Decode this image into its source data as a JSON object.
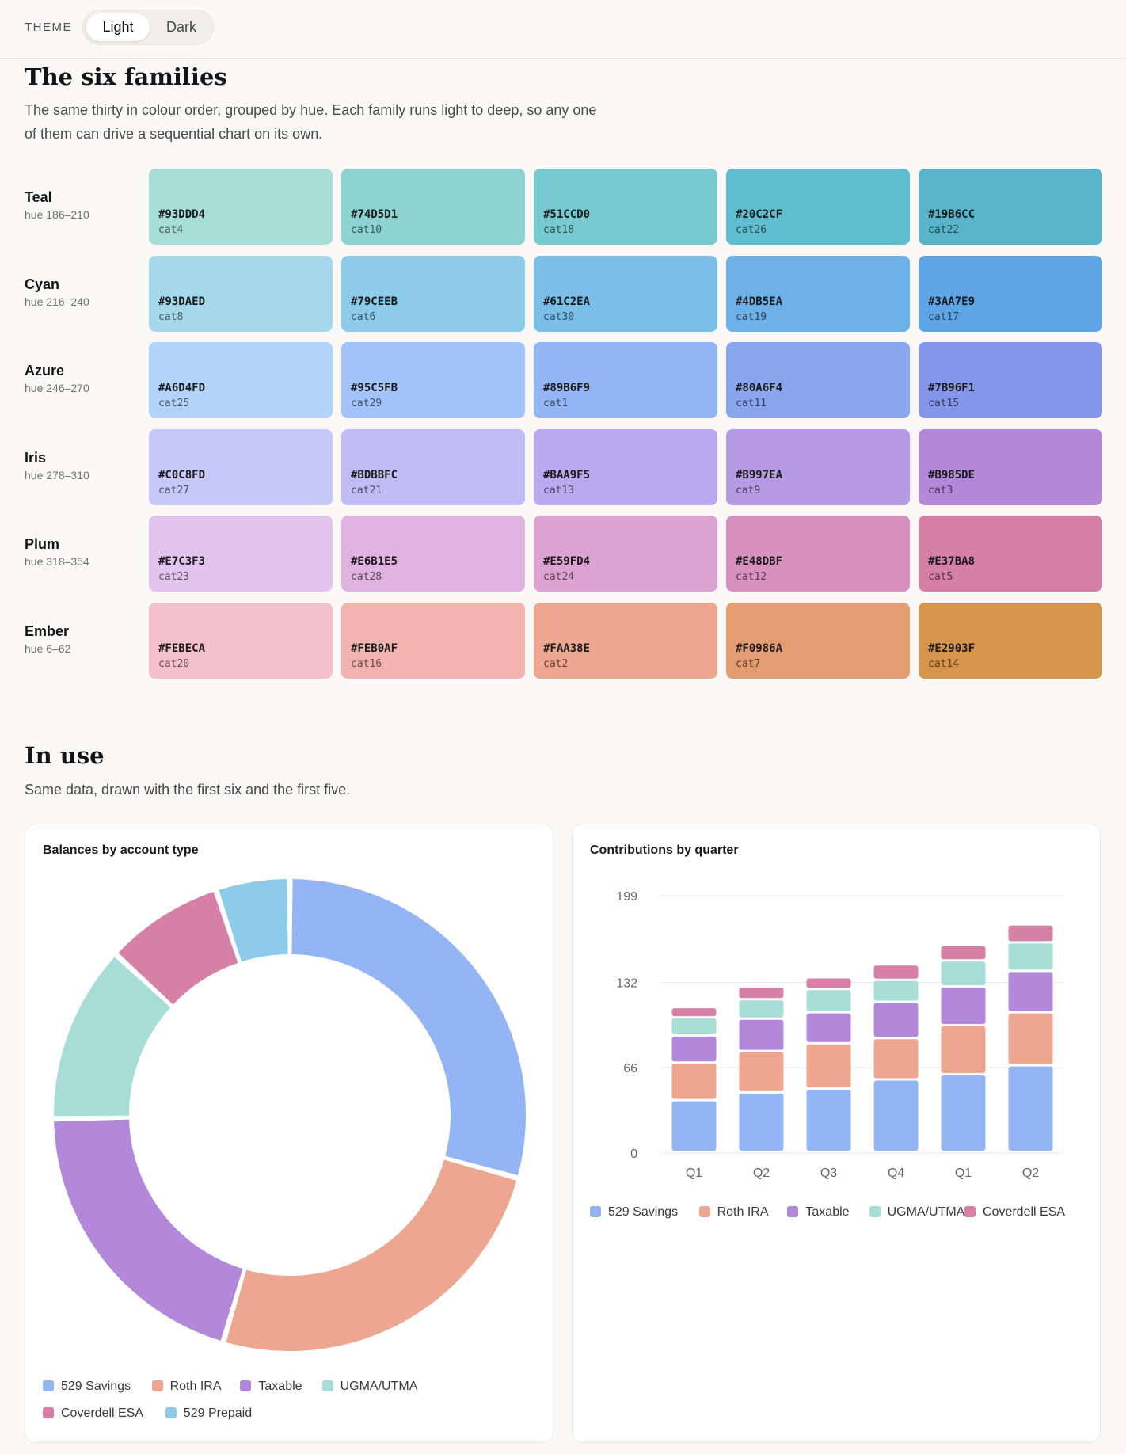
{
  "header": {
    "theme_label": "THEME",
    "theme_options": [
      "Light",
      "Dark"
    ],
    "theme_selected": "Light"
  },
  "families_section": {
    "title": "The six families",
    "description": "The same thirty in colour order, grouped by hue. Each family runs light to deep, so any one of them can drive a sequential chart on its own."
  },
  "families": [
    {
      "name": "Teal",
      "hue": "hue 186–210",
      "swatches": [
        {
          "hex": "#93DDD4",
          "cat": "cat4",
          "color": "#a6ddd6"
        },
        {
          "hex": "#74D5D1",
          "cat": "cat10",
          "color": "#8dd3d1"
        },
        {
          "hex": "#51CCD0",
          "cat": "cat18",
          "color": "#77cacf"
        },
        {
          "hex": "#20C2CF",
          "cat": "cat26",
          "color": "#5ebecf"
        },
        {
          "hex": "#19B6CC",
          "cat": "cat22",
          "color": "#57b4cb"
        }
      ]
    },
    {
      "name": "Cyan",
      "hue": "hue 216–240",
      "swatches": [
        {
          "hex": "#93DAED",
          "cat": "cat8",
          "color": "#a6d8ec"
        },
        {
          "hex": "#79CEEB",
          "cat": "cat6",
          "color": "#8ccbea"
        },
        {
          "hex": "#61C2EA",
          "cat": "cat30",
          "color": "#7bbfe9"
        },
        {
          "hex": "#4DB5EA",
          "cat": "cat19",
          "color": "#6cb1e8"
        },
        {
          "hex": "#3AA7E9",
          "cat": "cat17",
          "color": "#5ea5e6"
        }
      ]
    },
    {
      "name": "Azure",
      "hue": "hue 246–270",
      "swatches": [
        {
          "hex": "#A6D4FD",
          "cat": "cat25",
          "color": "#b2d3fa"
        },
        {
          "hex": "#95C5FB",
          "cat": "cat29",
          "color": "#a2c4f8"
        },
        {
          "hex": "#89B6F9",
          "cat": "cat1",
          "color": "#94b5f4"
        },
        {
          "hex": "#80A6F4",
          "cat": "cat11",
          "color": "#89a6ef"
        },
        {
          "hex": "#7B96F1",
          "cat": "cat15",
          "color": "#8396ea"
        }
      ]
    },
    {
      "name": "Iris",
      "hue": "hue 278–310",
      "swatches": [
        {
          "hex": "#C0C8FD",
          "cat": "cat27",
          "color": "#c5c8f8"
        },
        {
          "hex": "#BDBBFC",
          "cat": "cat21",
          "color": "#c0bcf6"
        },
        {
          "hex": "#BAA9F5",
          "cat": "cat13",
          "color": "#b9aaef"
        },
        {
          "hex": "#B997EA",
          "cat": "cat9",
          "color": "#b69ae4"
        },
        {
          "hex": "#B985DE",
          "cat": "cat3",
          "color": "#b388da"
        }
      ]
    },
    {
      "name": "Plum",
      "hue": "hue 318–354",
      "swatches": [
        {
          "hex": "#E7C3F3",
          "cat": "cat23",
          "color": "#e2c4ef"
        },
        {
          "hex": "#E6B1E5",
          "cat": "cat28",
          "color": "#e0b3e0"
        },
        {
          "hex": "#E59FD4",
          "cat": "cat24",
          "color": "#dca2d1"
        },
        {
          "hex": "#E48DBF",
          "cat": "cat12",
          "color": "#d891bf"
        },
        {
          "hex": "#E37BA8",
          "cat": "cat5",
          "color": "#d680a8"
        }
      ]
    },
    {
      "name": "Ember",
      "hue": "hue 6–62",
      "swatches": [
        {
          "hex": "#FEBECA",
          "cat": "cat20",
          "color": "#f5c1ca"
        },
        {
          "hex": "#FEB0AF",
          "cat": "cat16",
          "color": "#f3b3af"
        },
        {
          "hex": "#FAA38E",
          "cat": "cat2",
          "color": "#eda68f"
        },
        {
          "hex": "#F0986A",
          "cat": "cat7",
          "color": "#e49d71"
        },
        {
          "hex": "#E2903F",
          "cat": "cat14",
          "color": "#d6954b"
        }
      ]
    }
  ],
  "in_use_section": {
    "title": "In use",
    "description": "Same data, drawn with the first six and the first five."
  },
  "chart_data": [
    {
      "type": "pie",
      "title": "Balances by account type",
      "labels": [
        "529 Savings",
        "Roth IRA",
        "Taxable",
        "UGMA/UTMA",
        "Coverdell ESA",
        "529 Prepaid"
      ],
      "values": [
        29,
        25,
        20,
        12,
        8,
        5
      ],
      "colors": [
        "#94b5f4",
        "#eda68f",
        "#b388da",
        "#a6ddd6",
        "#d680a8",
        "#8ccbea"
      ],
      "donut": true,
      "legend": "bottom"
    },
    {
      "type": "bar",
      "stacked": true,
      "title": "Contributions by quarter",
      "categories": [
        "Q1",
        "Q2",
        "Q3",
        "Q4",
        "Q1",
        "Q2"
      ],
      "series": [
        {
          "name": "529 Savings",
          "color": "#94b5f4",
          "values": [
            40,
            46,
            49,
            56,
            60,
            67
          ]
        },
        {
          "name": "Roth IRA",
          "color": "#eda68f",
          "values": [
            29,
            32,
            35,
            32,
            38,
            41
          ]
        },
        {
          "name": "Taxable",
          "color": "#b388da",
          "values": [
            21,
            25,
            24,
            28,
            30,
            32
          ]
        },
        {
          "name": "UGMA/UTMA",
          "color": "#a6ddd6",
          "values": [
            14,
            15,
            18,
            17,
            20,
            22
          ]
        },
        {
          "name": "Coverdell ESA",
          "color": "#d680a8",
          "values": [
            8,
            10,
            9,
            12,
            12,
            14
          ]
        }
      ],
      "yticks": [
        0,
        66,
        132,
        199
      ],
      "ylim": [
        0,
        199
      ],
      "grid": true,
      "legend": "bottom"
    }
  ]
}
